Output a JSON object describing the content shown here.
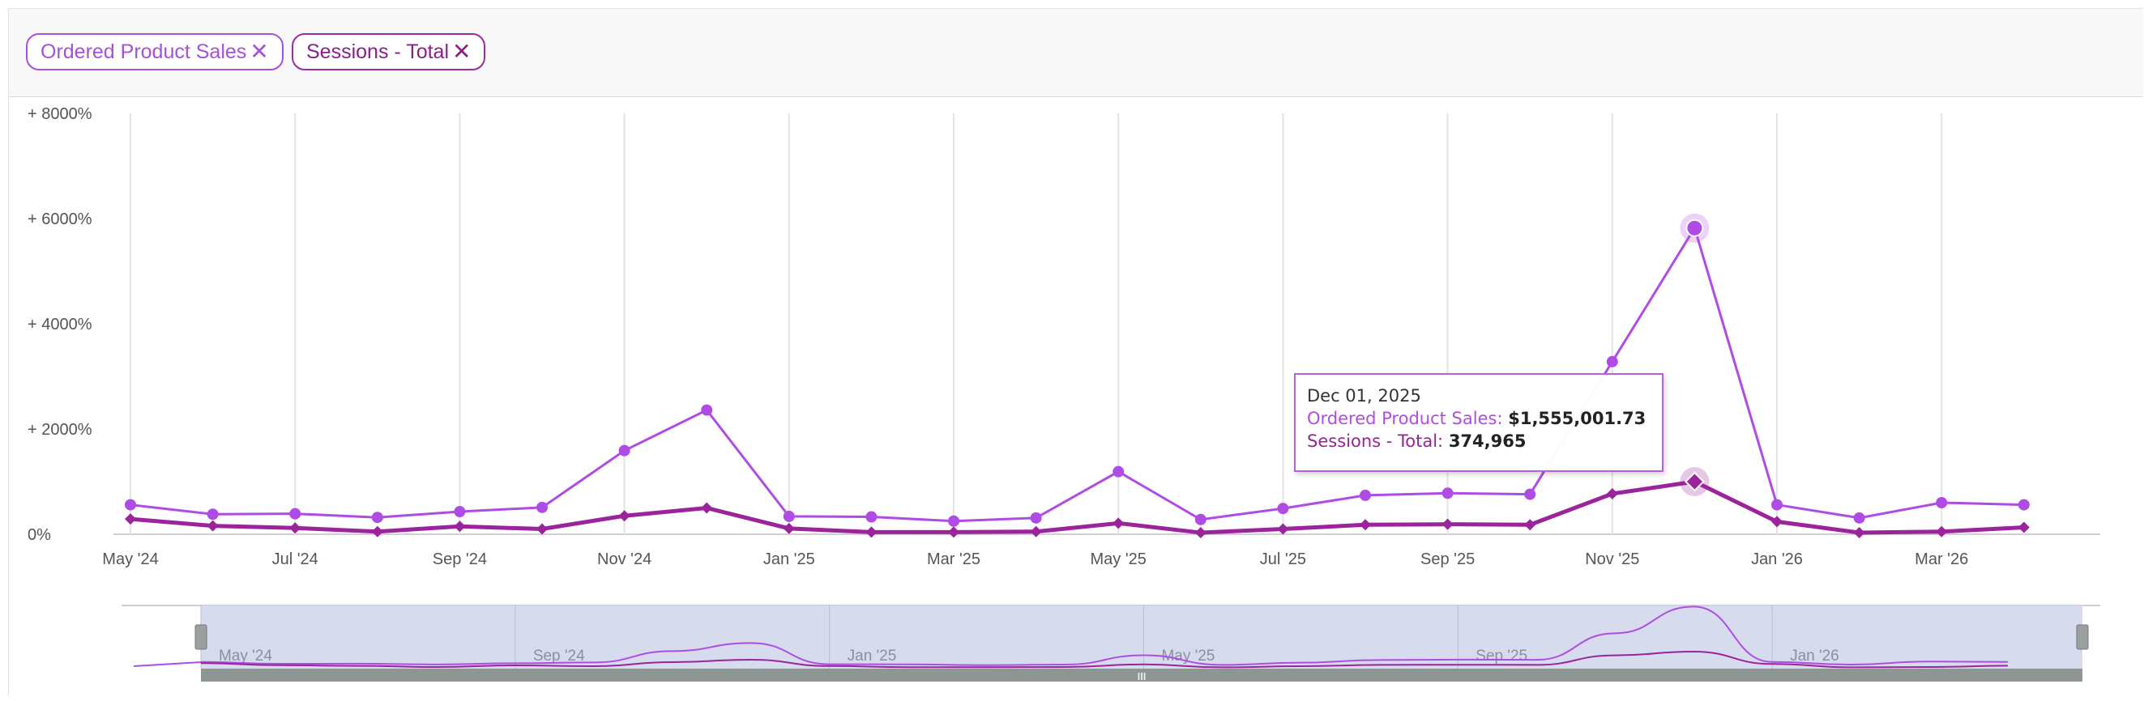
{
  "filters": [
    {
      "label": "Ordered Product Sales",
      "remove_icon": "✕"
    },
    {
      "label": "Sessions - Total",
      "remove_icon": "✕"
    }
  ],
  "colors": {
    "sales": "#b04ce6",
    "sessions": "#9b239b",
    "navigator_fill": "#d4d9ec",
    "navigator_line": "#9fa5b8"
  },
  "chart_data": {
    "type": "line",
    "x": [
      "2024-05",
      "2024-06",
      "2024-07",
      "2024-08",
      "2024-09",
      "2024-10",
      "2024-11",
      "2024-12",
      "2025-01",
      "2025-02",
      "2025-03",
      "2025-04",
      "2025-05",
      "2025-06",
      "2025-07",
      "2025-08",
      "2025-09",
      "2025-10",
      "2025-11",
      "2025-12",
      "2026-01",
      "2026-02",
      "2026-03",
      "2026-04"
    ],
    "series": [
      {
        "name": "Ordered Product Sales",
        "marker": "circle",
        "values": [
          560,
          380,
          390,
          320,
          430,
          510,
          1590,
          2360,
          340,
          330,
          250,
          310,
          1190,
          280,
          490,
          740,
          780,
          760,
          3280,
          5820,
          560,
          310,
          600,
          560
        ]
      },
      {
        "name": "Sessions - Total",
        "marker": "diamond",
        "values": [
          290,
          160,
          120,
          50,
          150,
          100,
          350,
          500,
          110,
          40,
          40,
          50,
          210,
          30,
          100,
          180,
          190,
          180,
          770,
          1000,
          240,
          30,
          50,
          130
        ]
      }
    ],
    "y_ticks": [
      "+ 8000%",
      "+ 6000%",
      "+ 4000%",
      "+ 2000%",
      "0%"
    ],
    "ylim": [
      0,
      8000
    ],
    "x_ticks": [
      {
        "label": "May '24",
        "x": "2024-05"
      },
      {
        "label": "Jul '24",
        "x": "2024-07"
      },
      {
        "label": "Sep '24",
        "x": "2024-09"
      },
      {
        "label": "Nov '24",
        "x": "2024-11"
      },
      {
        "label": "Jan '25",
        "x": "2025-01"
      },
      {
        "label": "Mar '25",
        "x": "2025-03"
      },
      {
        "label": "May '25",
        "x": "2025-05"
      },
      {
        "label": "Jul '25",
        "x": "2025-07"
      },
      {
        "label": "Sep '25",
        "x": "2025-09"
      },
      {
        "label": "Nov '25",
        "x": "2025-11"
      },
      {
        "label": "Jan '26",
        "x": "2026-01"
      },
      {
        "label": "Mar '26",
        "x": "2026-03"
      }
    ],
    "navigator_ticks": [
      {
        "label": "May '24",
        "x": "2024-05"
      },
      {
        "label": "Sep '24",
        "x": "2024-09"
      },
      {
        "label": "Jan '25",
        "x": "2025-01"
      },
      {
        "label": "May '25",
        "x": "2025-05"
      },
      {
        "label": "Sep '25",
        "x": "2025-09"
      },
      {
        "label": "Jan '26",
        "x": "2026-01"
      }
    ],
    "grid": true,
    "hovered": "2025-12",
    "tooltip": {
      "date": "Dec 01, 2025",
      "sales_label": "Ordered Product Sales:",
      "sales_value": "$1,555,001.73",
      "sessions_label": "Sessions - Total:",
      "sessions_value": "374,965"
    },
    "navigator_handle_glyph": "III"
  }
}
